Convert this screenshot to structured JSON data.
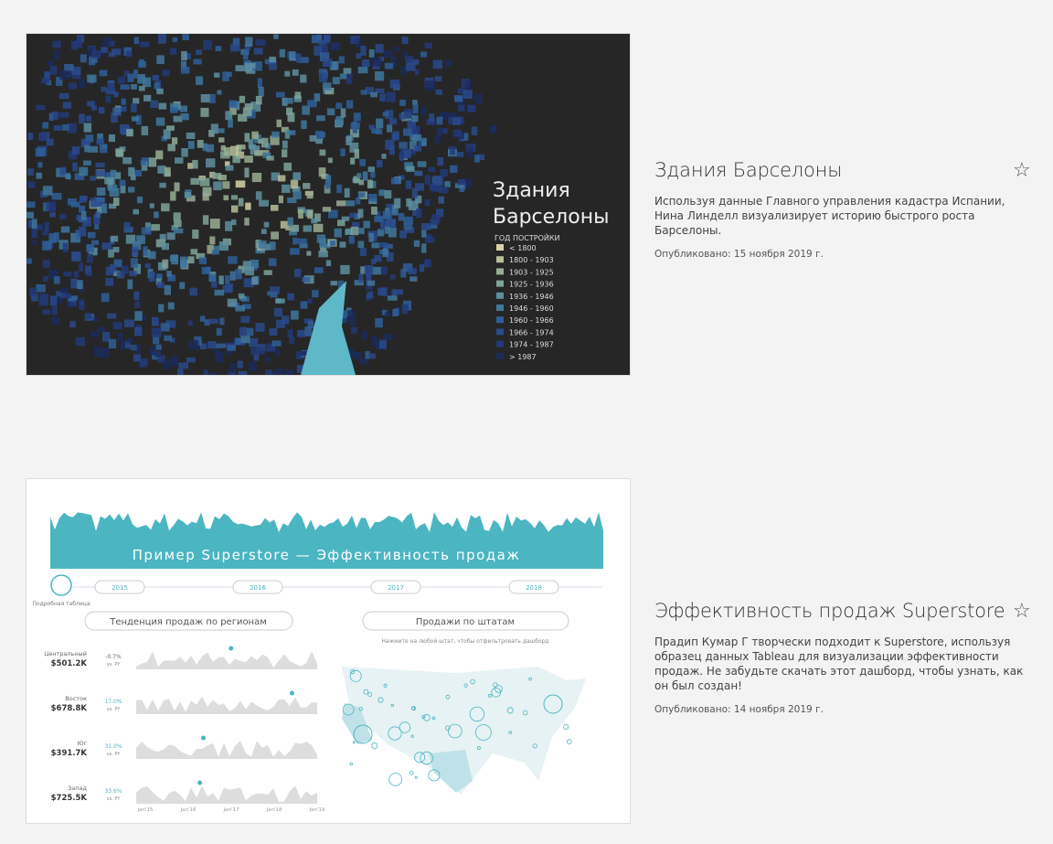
{
  "items": [
    {
      "title": "Здания Барселоны",
      "description": "Используя данные Главного управления кадастра Испании, Нина Линделл визуализирует историю быстрого роста Барселоны.",
      "published": "Опубликовано: 15 ноября 2019 г.",
      "thumbnail": {
        "title_lines": [
          "Здания",
          "Барселоны"
        ],
        "legend_title": "ГОД ПОСТРОЙКИ",
        "legend": [
          "< 1800",
          "1800 - 1903",
          "1903 - 1925",
          "1925 - 1936",
          "1936 - 1946",
          "1946 - 1960",
          "1960 - 1966",
          "1966 - 1974",
          "1974 - 1987",
          "> 1987"
        ]
      }
    },
    {
      "title": "Эффективность продаж Superstore",
      "description": "Прадип Кумар Г творчески подходит к Superstore, используя образец данных Tableau для визуализации эффективности продаж. Не забудьте скачать этот дашборд, чтобы узнать, как он был создан!",
      "published": "Опубликовано: 14 ноября 2019 г.",
      "thumbnail": {
        "banner": "Пример Superstore — Эффективность продаж",
        "years": [
          "2015",
          "2016",
          "2017",
          "2018"
        ],
        "table_link": "Подробная таблица",
        "region_header": "Тенденция продаж по регионам",
        "state_header": "Продажи по штатам",
        "hint": "Нажмите на любой штат, чтобы отфильтровать дашборд",
        "regions": [
          {
            "name": "Центральный",
            "value": "$501.2K",
            "change": "-0.7%",
            "note": "vs. PY"
          },
          {
            "name": "Восток",
            "value": "$678.8K",
            "change": "17.0%",
            "note": "vs. PY"
          },
          {
            "name": "Юг",
            "value": "$391.7K",
            "change": "31.0%",
            "note": "vs. PY"
          },
          {
            "name": "Запад",
            "value": "$725.5K",
            "change": "33.6%",
            "note": "vs. PY"
          }
        ],
        "axis": [
          "Jan'15",
          "Jan'16",
          "Jan'17",
          "Jan'18",
          "Jan'19"
        ]
      }
    }
  ]
}
